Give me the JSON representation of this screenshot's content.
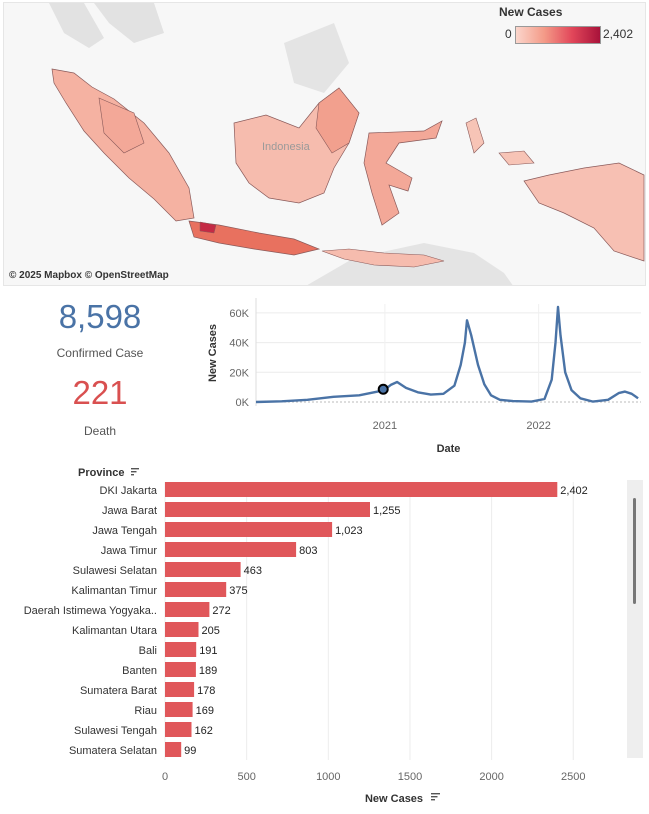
{
  "map": {
    "attribution": "© 2025 Mapbox © OpenStreetMap",
    "country_label": "Indonesia",
    "legend": {
      "title": "New Cases",
      "min": "0",
      "max": "2,402"
    }
  },
  "kpis": {
    "confirmed": {
      "value": "8,598",
      "label": "Confirmed Case"
    },
    "death": {
      "value": "221",
      "label": "Death"
    }
  },
  "colors": {
    "bar": "#e0575a",
    "line": "#4a73a6",
    "kpi_confirmed": "#4a73a6",
    "kpi_death": "#d95050"
  },
  "chart_data": [
    {
      "type": "line",
      "xlabel": "Date",
      "ylabel": "New Cases",
      "x_ticks": [
        "2021",
        "2022"
      ],
      "y_ticks": [
        "0K",
        "20K",
        "40K",
        "60K"
      ],
      "ylim": [
        0,
        66000
      ],
      "xlim": [
        "2020-03-01",
        "2022-09-01"
      ],
      "grid": true,
      "series": [
        {
          "x": [
            "2020-03-01",
            "2020-05-01",
            "2020-07-01",
            "2020-09-01",
            "2020-11-01",
            "2020-12-15",
            "2021-01-01",
            "2021-01-15",
            "2021-01-30",
            "2021-02-20",
            "2021-03-20",
            "2021-04-20",
            "2021-05-20",
            "2021-06-15",
            "2021-06-30",
            "2021-07-10",
            "2021-07-15",
            "2021-07-25",
            "2021-08-10",
            "2021-08-25",
            "2021-09-10",
            "2021-10-01",
            "2021-11-01",
            "2021-12-15",
            "2022-01-15",
            "2022-02-01",
            "2022-02-10",
            "2022-02-16",
            "2022-02-22",
            "2022-03-05",
            "2022-03-20",
            "2022-04-10",
            "2022-05-10",
            "2022-06-15",
            "2022-07-10",
            "2022-07-25",
            "2022-08-10",
            "2022-08-25"
          ],
          "y": [
            0,
            500,
            1500,
            3500,
            4500,
            7000,
            8500,
            11500,
            13500,
            9500,
            6500,
            5000,
            5500,
            11000,
            25000,
            40000,
            55000,
            45000,
            25000,
            12000,
            4500,
            1500,
            600,
            300,
            2000,
            15000,
            40000,
            64000,
            45000,
            20000,
            8000,
            2500,
            300,
            1500,
            6000,
            7000,
            5500,
            2500
          ]
        }
      ],
      "highlight_point": {
        "x": "2020-12-28",
        "y": 8598
      }
    },
    {
      "type": "bar",
      "orientation": "horizontal",
      "category_header": "Province",
      "xlabel": "New Cases",
      "x_ticks": [
        "0",
        "500",
        "1000",
        "1500",
        "2000",
        "2500"
      ],
      "xlim": [
        0,
        2780
      ],
      "categories": [
        "DKI Jakarta",
        "Jawa Barat",
        "Jawa Tengah",
        "Jawa Timur",
        "Sulawesi Selatan",
        "Kalimantan Timur",
        "Daerah Istimewa Yogyaka..",
        "Kalimantan Utara",
        "Bali",
        "Banten",
        "Sumatera Barat",
        "Riau",
        "Sulawesi Tengah",
        "Sumatera Selatan"
      ],
      "values": [
        2402,
        1255,
        1023,
        803,
        463,
        375,
        272,
        205,
        191,
        189,
        178,
        169,
        162,
        99
      ],
      "value_labels": [
        "2,402",
        "1,255",
        "1,023",
        "803",
        "463",
        "375",
        "272",
        "205",
        "191",
        "189",
        "178",
        "169",
        "162",
        "99"
      ]
    }
  ]
}
